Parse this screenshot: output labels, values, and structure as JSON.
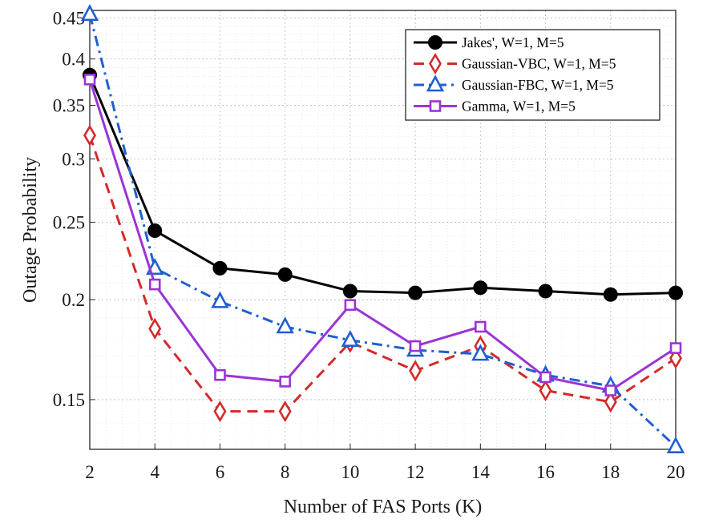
{
  "chart_data": {
    "type": "line",
    "title": "",
    "xlabel": "Number of FAS Ports (K)",
    "ylabel": "Outage Probability",
    "x": [
      2,
      4,
      6,
      8,
      10,
      12,
      14,
      16,
      18,
      20
    ],
    "xlim": [
      2,
      20
    ],
    "ylim": [
      0.13,
      0.46
    ],
    "yscale": "log",
    "xticks": [
      "2",
      "4",
      "6",
      "8",
      "10",
      "12",
      "14",
      "16",
      "18",
      "20"
    ],
    "yticks": [
      0.15,
      0.2,
      0.25,
      0.3,
      0.35,
      0.4,
      0.45
    ],
    "ytick_labels": [
      "0.15",
      "0.2",
      "0.25",
      "0.3",
      "0.35",
      "0.4",
      "0.45"
    ],
    "grid": true,
    "legend_position": "top-right",
    "series": [
      {
        "name": "Jakes', W=1, M=5",
        "color": "#000000",
        "line_style": "solid",
        "marker": "circle",
        "values": [
          0.382,
          0.244,
          0.219,
          0.215,
          0.205,
          0.204,
          0.207,
          0.205,
          0.203,
          0.204
        ]
      },
      {
        "name": "Gaussian-VBC, W=1, M=5",
        "color": "#d42a2a",
        "line_style": "dashed",
        "marker": "diamond",
        "values": [
          0.321,
          0.184,
          0.145,
          0.145,
          0.177,
          0.163,
          0.175,
          0.154,
          0.149,
          0.169
        ]
      },
      {
        "name": "Gaussian-FBC, W=1, M=5",
        "color": "#1f5fd1",
        "line_style": "dashdot",
        "marker": "triangle",
        "values": [
          0.455,
          0.219,
          0.199,
          0.185,
          0.178,
          0.173,
          0.171,
          0.161,
          0.156,
          0.131
        ]
      },
      {
        "name": "Gamma, W=1, M=5",
        "color": "#9b34d6",
        "line_style": "solid",
        "marker": "square",
        "values": [
          0.377,
          0.209,
          0.161,
          0.158,
          0.197,
          0.175,
          0.185,
          0.16,
          0.154,
          0.174
        ]
      }
    ]
  }
}
